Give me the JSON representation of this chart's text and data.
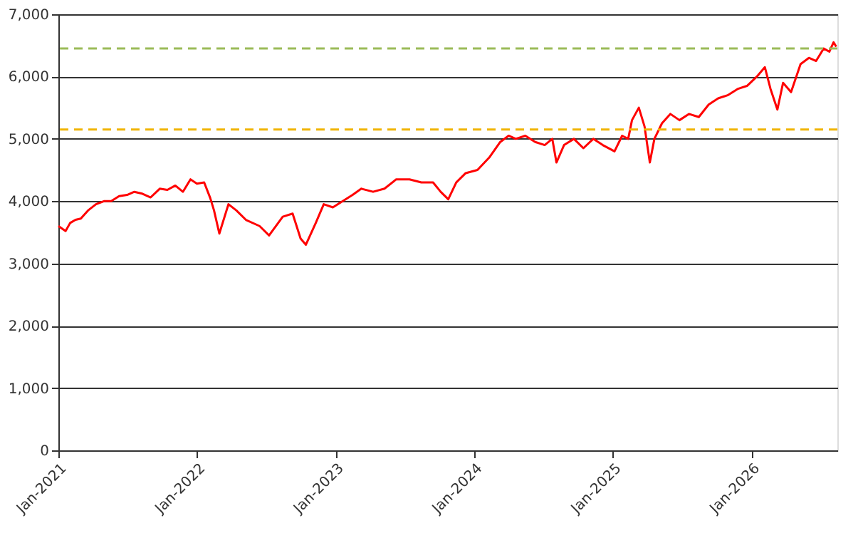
{
  "chart_data": {
    "type": "line",
    "x": [
      "2021-01-01",
      "2021-01-20",
      "2021-02-01",
      "2021-02-15",
      "2021-03-01",
      "2021-03-20",
      "2021-04-10",
      "2021-05-01",
      "2021-05-20",
      "2021-06-10",
      "2021-07-01",
      "2021-07-20",
      "2021-08-10",
      "2021-09-01",
      "2021-09-25",
      "2021-10-15",
      "2021-11-05",
      "2021-11-25",
      "2021-12-15",
      "2022-01-01",
      "2022-01-20",
      "2022-02-05",
      "2022-02-15",
      "2022-03-01",
      "2022-03-25",
      "2022-04-15",
      "2022-05-10",
      "2022-06-15",
      "2022-07-10",
      "2022-08-15",
      "2022-09-10",
      "2022-10-01",
      "2022-10-15",
      "2022-11-10",
      "2022-12-01",
      "2022-12-25",
      "2023-01-20",
      "2023-02-15",
      "2023-03-10",
      "2023-04-10",
      "2023-05-10",
      "2023-06-10",
      "2023-07-15",
      "2023-08-15",
      "2023-09-15",
      "2023-10-05",
      "2023-10-25",
      "2023-11-15",
      "2023-12-10",
      "2024-01-10",
      "2024-02-10",
      "2024-03-10",
      "2024-04-01",
      "2024-04-20",
      "2024-05-15",
      "2024-06-10",
      "2024-07-05",
      "2024-07-25",
      "2024-08-05",
      "2024-08-25",
      "2024-09-20",
      "2024-10-15",
      "2024-11-10",
      "2024-12-05",
      "2025-01-05",
      "2025-01-25",
      "2025-02-10",
      "2025-02-20",
      "2025-03-10",
      "2025-03-25",
      "2025-04-08",
      "2025-04-20",
      "2025-05-10",
      "2025-06-01",
      "2025-06-25",
      "2025-07-20",
      "2025-08-15",
      "2025-09-10",
      "2025-10-05",
      "2025-10-30",
      "2025-11-25",
      "2025-12-20",
      "2026-01-15",
      "2026-02-05",
      "2026-02-20",
      "2026-03-10",
      "2026-03-25",
      "2026-04-15",
      "2026-05-10",
      "2026-06-01",
      "2026-06-20",
      "2026-07-10",
      "2026-07-25",
      "2026-08-05",
      "2026-08-12"
    ],
    "series": [
      {
        "color": "#ff0000",
        "values": [
          3600,
          3520,
          3650,
          3700,
          3720,
          3850,
          3950,
          4000,
          4000,
          4080,
          4100,
          4150,
          4120,
          4060,
          4200,
          4180,
          4250,
          4150,
          4350,
          4280,
          4300,
          4050,
          3850,
          3480,
          3950,
          3850,
          3700,
          3600,
          3450,
          3750,
          3800,
          3400,
          3300,
          3650,
          3950,
          3900,
          4000,
          4100,
          4200,
          4150,
          4200,
          4350,
          4350,
          4300,
          4300,
          4150,
          4030,
          4300,
          4450,
          4500,
          4700,
          4950,
          5050,
          5000,
          5050,
          4950,
          4900,
          5000,
          4620,
          4900,
          5000,
          4850,
          5000,
          4900,
          4800,
          5050,
          5000,
          5300,
          5500,
          5200,
          4620,
          5000,
          5250,
          5400,
          5300,
          5400,
          5350,
          5550,
          5650,
          5700,
          5800,
          5850,
          6000,
          6150,
          5800,
          5470,
          5900,
          5750,
          6200,
          6300,
          6250,
          6450,
          6400,
          6550,
          6480
        ]
      }
    ],
    "xlim": [
      "2021-01-01",
      "2026-08-15"
    ],
    "xticks": [
      {
        "value": "2021-01-01",
        "label": "Jan-2021"
      },
      {
        "value": "2022-01-01",
        "label": "Jan-2022"
      },
      {
        "value": "2023-01-01",
        "label": "Jan-2023"
      },
      {
        "value": "2024-01-01",
        "label": "Jan-2024"
      },
      {
        "value": "2025-01-01",
        "label": "Jan-2025"
      },
      {
        "value": "2026-01-01",
        "label": "Jan-2026"
      }
    ],
    "ylim": [
      0,
      7000
    ],
    "yticks": [
      {
        "value": 0,
        "label": "0"
      },
      {
        "value": 1000,
        "label": "1,000"
      },
      {
        "value": 2000,
        "label": "2,000"
      },
      {
        "value": 3000,
        "label": "3,000"
      },
      {
        "value": 4000,
        "label": "4,000"
      },
      {
        "value": 5000,
        "label": "5,000"
      },
      {
        "value": 6000,
        "label": "6,000"
      },
      {
        "value": 7000,
        "label": "7,000"
      }
    ],
    "ref_lines": [
      {
        "axis": "y",
        "value": 6450,
        "color": "#9bbb59",
        "line_style": "dashed"
      },
      {
        "axis": "y",
        "value": 5150,
        "color": "#f0b400",
        "line_style": "dashed"
      }
    ],
    "grid": "y",
    "marker": "none",
    "line_style": "solid"
  }
}
